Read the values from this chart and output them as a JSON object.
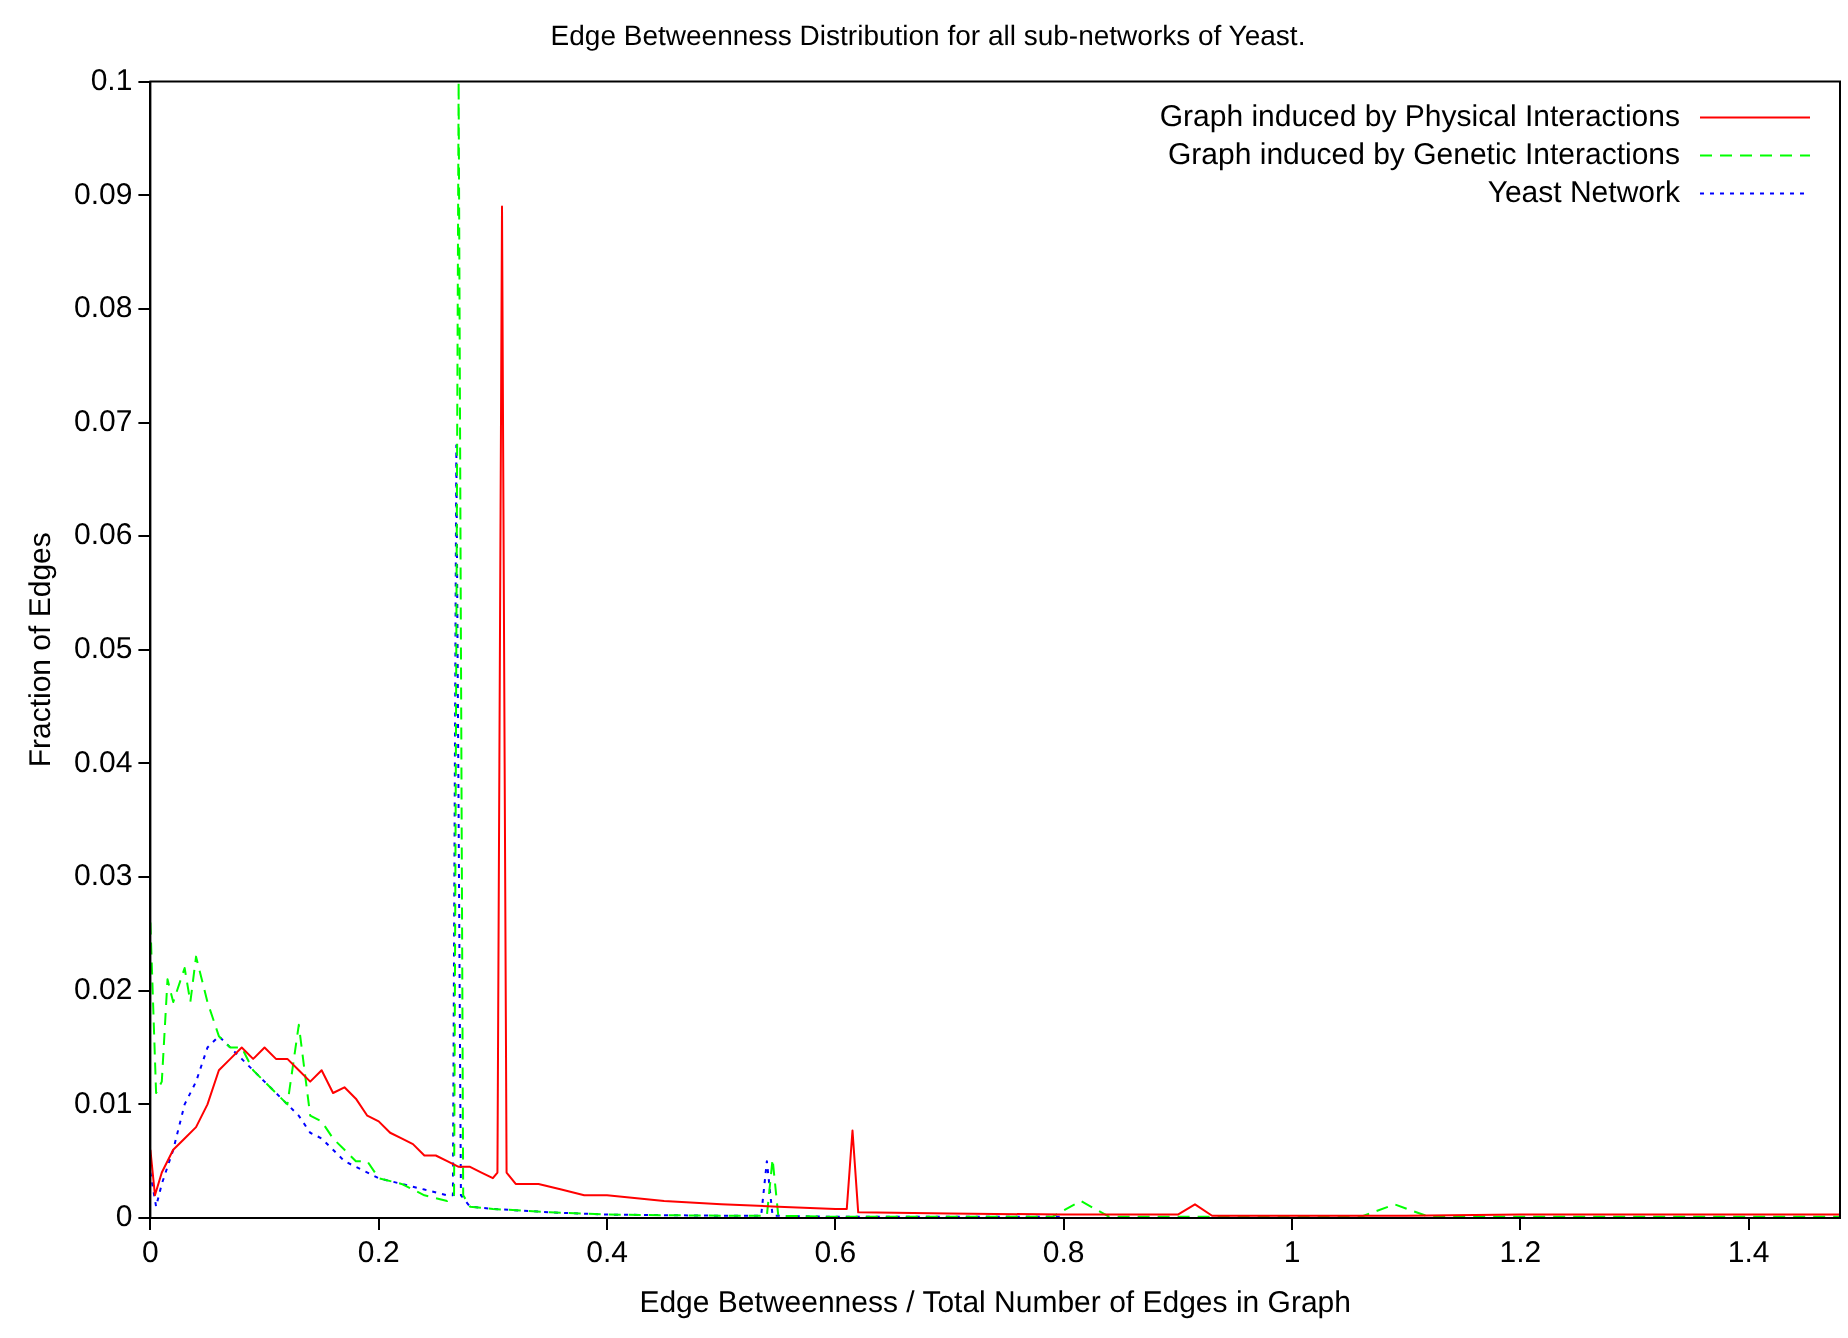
{
  "chart_data": {
    "type": "line",
    "title": "Edge Betweenness Distribution for all sub-networks of Yeast.",
    "xlabel": "Edge Betweenness / Total Number of Edges in Graph",
    "ylabel": "Fraction of Edges",
    "xlim": [
      0,
      1.48
    ],
    "xticks": [
      0,
      0.2,
      0.4,
      0.6,
      0.8,
      1,
      1.2,
      1.4
    ],
    "ylim": [
      0,
      0.1
    ],
    "yticks": [
      0,
      0.01,
      0.02,
      0.03,
      0.04,
      0.05,
      0.06,
      0.07,
      0.08,
      0.09,
      0.1
    ],
    "grid": false,
    "legend": "top right",
    "marker": "none",
    "series": [
      {
        "name": "Graph induced by Physical Interactions",
        "color": "#ff0000",
        "line_style": "solid",
        "x": [
          0,
          0.004,
          0.01,
          0.02,
          0.03,
          0.04,
          0.05,
          0.06,
          0.07,
          0.08,
          0.09,
          0.1,
          0.11,
          0.12,
          0.13,
          0.14,
          0.15,
          0.16,
          0.17,
          0.18,
          0.19,
          0.2,
          0.21,
          0.22,
          0.23,
          0.24,
          0.25,
          0.26,
          0.27,
          0.28,
          0.29,
          0.3,
          0.304,
          0.308,
          0.312,
          0.32,
          0.34,
          0.36,
          0.38,
          0.4,
          0.45,
          0.5,
          0.55,
          0.6,
          0.61,
          0.615,
          0.62,
          0.7,
          0.8,
          0.9,
          0.915,
          0.93,
          1,
          1.1,
          1.2,
          1.48
        ],
        "values": [
          0.006,
          0.002,
          0.004,
          0.006,
          0.007,
          0.008,
          0.01,
          0.013,
          0.014,
          0.015,
          0.014,
          0.015,
          0.014,
          0.014,
          0.013,
          0.012,
          0.013,
          0.011,
          0.0115,
          0.0105,
          0.009,
          0.0085,
          0.0075,
          0.007,
          0.0065,
          0.0055,
          0.0055,
          0.005,
          0.0045,
          0.0045,
          0.004,
          0.0035,
          0.004,
          0.089,
          0.004,
          0.003,
          0.003,
          0.0025,
          0.002,
          0.002,
          0.0015,
          0.0012,
          0.001,
          0.0008,
          0.0008,
          0.0077,
          0.0005,
          0.0004,
          0.0003,
          0.0003,
          0.0012,
          0.0002,
          0.0002,
          0.0002,
          0.0003,
          0.0003
        ]
      },
      {
        "name": "Graph induced by Genetic Interactions",
        "color": "#00ff00",
        "line_style": "dashed",
        "x": [
          0,
          0.005,
          0.01,
          0.015,
          0.02,
          0.03,
          0.035,
          0.04,
          0.05,
          0.06,
          0.07,
          0.08,
          0.09,
          0.1,
          0.11,
          0.12,
          0.13,
          0.14,
          0.15,
          0.16,
          0.17,
          0.18,
          0.19,
          0.2,
          0.22,
          0.24,
          0.26,
          0.266,
          0.27,
          0.274,
          0.28,
          0.3,
          0.35,
          0.4,
          0.5,
          0.54,
          0.545,
          0.55,
          0.6,
          0.7,
          0.79,
          0.815,
          0.84,
          1,
          1.06,
          1.09,
          1.12,
          1.48
        ],
        "values": [
          0.026,
          0.011,
          0.012,
          0.021,
          0.019,
          0.022,
          0.019,
          0.023,
          0.019,
          0.016,
          0.015,
          0.015,
          0.013,
          0.012,
          0.011,
          0.01,
          0.017,
          0.009,
          0.0085,
          0.007,
          0.006,
          0.005,
          0.005,
          0.0035,
          0.003,
          0.002,
          0.0015,
          0.002,
          0.1,
          0.002,
          0.001,
          0.0008,
          0.0005,
          0.0003,
          0.0002,
          0.0002,
          0.0052,
          0.0002,
          0.0001,
          0.0001,
          0.0001,
          0.0015,
          0.0001,
          0.0001,
          0.0001,
          0.0012,
          0.0001,
          0.0001
        ]
      },
      {
        "name": "Yeast Network",
        "color": "#0000ff",
        "line_style": "dotted",
        "x": [
          0,
          0.005,
          0.01,
          0.02,
          0.03,
          0.04,
          0.05,
          0.06,
          0.07,
          0.08,
          0.09,
          0.1,
          0.11,
          0.12,
          0.13,
          0.14,
          0.15,
          0.16,
          0.17,
          0.18,
          0.2,
          0.22,
          0.24,
          0.26,
          0.265,
          0.268,
          0.272,
          0.28,
          0.3,
          0.35,
          0.4,
          0.5,
          0.535,
          0.54,
          0.545,
          0.6,
          0.8
        ],
        "values": [
          0.004,
          0.001,
          0.003,
          0.006,
          0.01,
          0.012,
          0.015,
          0.016,
          0.015,
          0.014,
          0.013,
          0.012,
          0.011,
          0.01,
          0.009,
          0.0075,
          0.007,
          0.006,
          0.005,
          0.0045,
          0.0035,
          0.003,
          0.0025,
          0.002,
          0.002,
          0.068,
          0.002,
          0.001,
          0.0008,
          0.0005,
          0.0003,
          0.0002,
          0.0002,
          0.005,
          0.0002,
          0.0001,
          0.0001
        ]
      }
    ]
  }
}
